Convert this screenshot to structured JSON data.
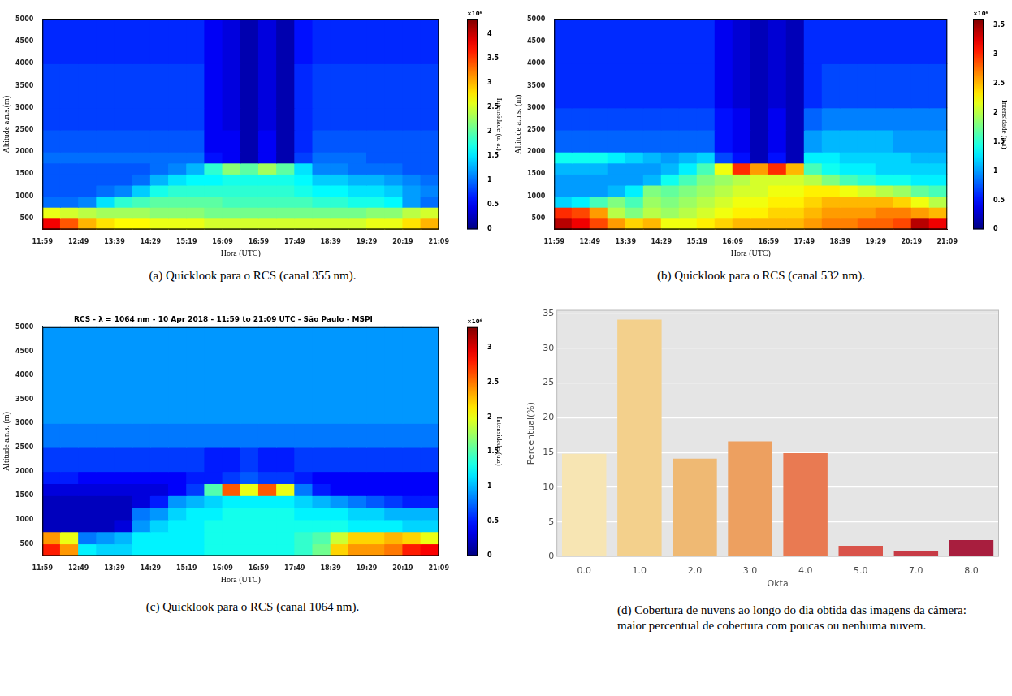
{
  "chart_data": [
    {
      "type": "heatmap",
      "caption": "(a) Quicklook para o RCS (canal 355 nm).",
      "xlabel": "Hora (UTC)",
      "ylabel": "Altitude a.n.s.(m)",
      "grid": false,
      "xlim": [
        719,
        1269
      ],
      "xticks": [
        {
          "value": 719,
          "label": "11:59"
        },
        {
          "value": 769,
          "label": "12:49"
        },
        {
          "value": 819,
          "label": "13:39"
        },
        {
          "value": 869,
          "label": "14:29"
        },
        {
          "value": 919,
          "label": "15:19"
        },
        {
          "value": 969,
          "label": "16:09"
        },
        {
          "value": 1019,
          "label": "16:59"
        },
        {
          "value": 1069,
          "label": "17:49"
        },
        {
          "value": 1119,
          "label": "18:39"
        },
        {
          "value": 1169,
          "label": "19:29"
        },
        {
          "value": 1219,
          "label": "20:19"
        },
        {
          "value": 1269,
          "label": "21:09"
        }
      ],
      "ylim": [
        250,
        5000
      ],
      "yticks": [
        500,
        1000,
        1500,
        2000,
        2500,
        3000,
        3500,
        4000,
        4500,
        5000
      ],
      "x_edges": [
        719,
        744,
        769,
        794,
        819,
        844,
        869,
        894,
        919,
        944,
        969,
        994,
        1019,
        1044,
        1069,
        1094,
        1119,
        1144,
        1169,
        1194,
        1219,
        1244,
        1269
      ],
      "y_edges": [
        250,
        500,
        750,
        1000,
        1250,
        1500,
        1750,
        2000,
        2500,
        3000,
        4000,
        5000
      ],
      "z": [
        [
          3.8,
          3.4,
          3.0,
          2.8,
          2.7,
          2.7,
          2.6,
          2.6,
          2.6,
          2.5,
          2.5,
          2.5,
          2.5,
          2.5,
          2.5,
          2.5,
          2.5,
          2.5,
          2.6,
          2.6,
          2.8,
          3.0
        ],
        [
          2.6,
          2.5,
          2.4,
          2.3,
          2.3,
          2.3,
          2.2,
          2.2,
          2.2,
          2.1,
          2.1,
          2.1,
          2.1,
          2.1,
          2.1,
          2.1,
          2.1,
          2.1,
          2.2,
          2.2,
          2.4,
          2.5
        ],
        [
          1.0,
          1.0,
          1.1,
          1.5,
          1.8,
          1.9,
          2.0,
          2.0,
          2.0,
          2.0,
          1.9,
          1.9,
          1.9,
          1.9,
          1.9,
          1.8,
          1.8,
          1.7,
          1.7,
          1.6,
          1.2,
          1.0
        ],
        [
          0.9,
          0.9,
          0.9,
          1.0,
          1.1,
          1.4,
          1.7,
          1.8,
          1.8,
          1.8,
          1.8,
          1.8,
          1.8,
          1.8,
          1.7,
          1.6,
          1.6,
          1.5,
          1.5,
          1.4,
          1.2,
          1.1
        ],
        [
          0.9,
          0.9,
          0.9,
          0.9,
          0.9,
          1.0,
          1.3,
          1.5,
          1.6,
          1.6,
          1.7,
          1.7,
          1.7,
          1.7,
          1.6,
          1.4,
          1.4,
          1.3,
          1.3,
          1.2,
          1.1,
          1.0
        ],
        [
          0.9,
          0.9,
          0.9,
          0.9,
          0.9,
          0.9,
          1.0,
          1.1,
          1.3,
          1.8,
          2.2,
          2.0,
          2.3,
          2.0,
          1.5,
          1.1,
          1.1,
          1.0,
          1.0,
          1.0,
          0.9,
          0.9
        ],
        [
          1.0,
          1.0,
          1.0,
          1.0,
          1.0,
          1.0,
          1.0,
          1.0,
          1.0,
          0.6,
          0.5,
          0.2,
          0.5,
          0.2,
          0.8,
          1.0,
          1.0,
          1.0,
          0.9,
          0.9,
          0.9,
          0.9
        ],
        [
          0.9,
          0.9,
          0.9,
          0.9,
          0.9,
          0.9,
          0.9,
          0.9,
          0.9,
          0.5,
          0.5,
          0.2,
          0.5,
          0.2,
          0.7,
          0.9,
          0.9,
          0.9,
          0.9,
          0.9,
          0.9,
          0.9
        ],
        [
          0.8,
          0.8,
          0.8,
          0.8,
          0.8,
          0.8,
          0.8,
          0.8,
          0.8,
          0.5,
          0.4,
          0.2,
          0.4,
          0.2,
          0.7,
          0.8,
          0.8,
          0.8,
          0.8,
          0.8,
          0.8,
          0.8
        ],
        [
          0.8,
          0.8,
          0.8,
          0.8,
          0.8,
          0.8,
          0.8,
          0.8,
          0.8,
          0.5,
          0.4,
          0.2,
          0.4,
          0.2,
          0.7,
          0.8,
          0.8,
          0.8,
          0.8,
          0.8,
          0.8,
          0.8
        ],
        [
          0.7,
          0.7,
          0.7,
          0.7,
          0.7,
          0.7,
          0.7,
          0.7,
          0.7,
          0.5,
          0.4,
          0.2,
          0.4,
          0.2,
          0.6,
          0.7,
          0.7,
          0.7,
          0.7,
          0.7,
          0.7,
          0.7
        ]
      ],
      "colorbar": {
        "label": "Intensidade (u. a.)",
        "multiplier": "×10⁶",
        "range": [
          0,
          4.3
        ],
        "ticks": [
          0,
          0.5,
          1,
          1.5,
          2,
          2.5,
          3,
          3.5,
          4
        ]
      }
    },
    {
      "type": "heatmap",
      "caption": "(b) Quicklook para o RCS (canal 532 nm).",
      "xlabel": "Hora (UTC)",
      "ylabel": "Altitude a.n.s. (m)",
      "grid": false,
      "xlim": [
        719,
        1269
      ],
      "xticks": [
        {
          "value": 719,
          "label": "11:59"
        },
        {
          "value": 769,
          "label": "12:49"
        },
        {
          "value": 819,
          "label": "13:39"
        },
        {
          "value": 869,
          "label": "14:29"
        },
        {
          "value": 919,
          "label": "15:19"
        },
        {
          "value": 969,
          "label": "16:09"
        },
        {
          "value": 1019,
          "label": "16:59"
        },
        {
          "value": 1069,
          "label": "17:49"
        },
        {
          "value": 1119,
          "label": "18:39"
        },
        {
          "value": 1169,
          "label": "19:29"
        },
        {
          "value": 1219,
          "label": "20:19"
        },
        {
          "value": 1269,
          "label": "21:09"
        }
      ],
      "ylim": [
        250,
        5000
      ],
      "yticks": [
        500,
        1000,
        1500,
        2000,
        2500,
        3000,
        3500,
        4000,
        4500,
        5000
      ],
      "x_edges": [
        719,
        744,
        769,
        794,
        819,
        844,
        869,
        894,
        919,
        944,
        969,
        994,
        1019,
        1044,
        1069,
        1094,
        1119,
        1144,
        1169,
        1194,
        1219,
        1244,
        1269
      ],
      "y_edges": [
        250,
        500,
        750,
        1000,
        1250,
        1500,
        1750,
        2000,
        2500,
        3000,
        4000,
        5000
      ],
      "z": [
        [
          3.4,
          3.2,
          2.9,
          2.6,
          2.4,
          2.5,
          2.2,
          2.2,
          2.3,
          2.4,
          2.5,
          2.5,
          2.5,
          2.5,
          2.6,
          2.7,
          2.7,
          2.8,
          2.8,
          2.9,
          3.4,
          3.2
        ],
        [
          3.0,
          2.9,
          2.6,
          2.0,
          1.8,
          2.0,
          1.9,
          2.0,
          2.1,
          2.2,
          2.3,
          2.3,
          2.4,
          2.4,
          2.5,
          2.6,
          2.6,
          2.6,
          2.7,
          2.7,
          2.6,
          2.5
        ],
        [
          1.2,
          1.3,
          1.6,
          1.8,
          1.6,
          1.9,
          1.8,
          1.9,
          2.0,
          2.1,
          2.2,
          2.2,
          2.3,
          2.3,
          2.4,
          2.5,
          2.5,
          2.5,
          2.5,
          2.4,
          2.2,
          2.0
        ],
        [
          1.0,
          1.0,
          1.0,
          1.1,
          1.3,
          1.8,
          1.7,
          1.8,
          1.9,
          2.0,
          2.1,
          2.1,
          2.2,
          2.2,
          2.3,
          2.3,
          2.2,
          2.1,
          2.0,
          1.9,
          1.7,
          1.6
        ],
        [
          1.0,
          1.0,
          1.0,
          1.0,
          1.0,
          1.1,
          1.4,
          1.6,
          1.8,
          1.9,
          2.0,
          2.1,
          2.1,
          2.1,
          2.0,
          1.8,
          1.6,
          1.5,
          1.4,
          1.4,
          1.3,
          1.3
        ],
        [
          1.1,
          1.1,
          1.1,
          1.0,
          1.0,
          1.0,
          1.1,
          1.3,
          1.6,
          2.2,
          3.0,
          2.6,
          3.0,
          2.5,
          1.6,
          1.4,
          1.3,
          1.3,
          1.2,
          1.2,
          1.2,
          1.2
        ],
        [
          1.4,
          1.4,
          1.4,
          1.3,
          1.2,
          1.1,
          1.0,
          1.1,
          1.2,
          0.7,
          0.5,
          0.2,
          0.5,
          0.2,
          1.3,
          1.3,
          1.2,
          1.2,
          1.2,
          1.2,
          1.1,
          1.1
        ],
        [
          0.8,
          0.8,
          0.8,
          0.8,
          0.8,
          0.8,
          0.8,
          0.8,
          0.8,
          0.5,
          0.4,
          0.2,
          0.4,
          0.2,
          1.0,
          1.1,
          1.1,
          1.1,
          1.1,
          1.0,
          1.0,
          1.0
        ],
        [
          0.7,
          0.7,
          0.7,
          0.7,
          0.7,
          0.7,
          0.7,
          0.7,
          0.7,
          0.5,
          0.4,
          0.2,
          0.4,
          0.2,
          0.8,
          0.9,
          0.9,
          0.9,
          0.9,
          0.9,
          0.9,
          0.9
        ],
        [
          0.6,
          0.6,
          0.6,
          0.6,
          0.6,
          0.6,
          0.6,
          0.6,
          0.6,
          0.4,
          0.3,
          0.2,
          0.3,
          0.2,
          0.6,
          0.7,
          0.7,
          0.7,
          0.7,
          0.7,
          0.7,
          0.7
        ],
        [
          0.6,
          0.6,
          0.6,
          0.6,
          0.6,
          0.6,
          0.6,
          0.6,
          0.6,
          0.4,
          0.3,
          0.2,
          0.3,
          0.2,
          0.6,
          0.6,
          0.6,
          0.6,
          0.6,
          0.6,
          0.6,
          0.6
        ]
      ],
      "colorbar": {
        "label": "Intensidade (u.a)",
        "multiplier": "×10⁶",
        "range": [
          0,
          3.6
        ],
        "ticks": [
          0,
          0.5,
          1,
          1.5,
          2,
          2.5,
          3,
          3.5
        ]
      }
    },
    {
      "type": "heatmap",
      "title": "RCS - λ = 1064 nm - 10 Apr 2018 - 11:59 to 21:09 UTC - São Paulo - MSPI",
      "caption": "(c) Quicklook para o RCS (canal 1064 nm).",
      "xlabel": "Hora (UTC)",
      "ylabel": "Altitude a.n.s. (m)",
      "grid": false,
      "xlim": [
        719,
        1269
      ],
      "xticks": [
        {
          "value": 719,
          "label": "11:59"
        },
        {
          "value": 769,
          "label": "12:49"
        },
        {
          "value": 819,
          "label": "13:39"
        },
        {
          "value": 869,
          "label": "14:29"
        },
        {
          "value": 919,
          "label": "15:19"
        },
        {
          "value": 969,
          "label": "16:09"
        },
        {
          "value": 1019,
          "label": "16:59"
        },
        {
          "value": 1069,
          "label": "17:49"
        },
        {
          "value": 1119,
          "label": "18:39"
        },
        {
          "value": 1169,
          "label": "19:29"
        },
        {
          "value": 1219,
          "label": "20:19"
        },
        {
          "value": 1269,
          "label": "21:09"
        }
      ],
      "ylim": [
        250,
        5000
      ],
      "yticks": [
        500,
        1000,
        1500,
        2000,
        2500,
        3000,
        3500,
        4000,
        4500,
        5000
      ],
      "x_edges": [
        719,
        744,
        769,
        794,
        819,
        844,
        869,
        894,
        919,
        944,
        969,
        994,
        1019,
        1044,
        1069,
        1094,
        1119,
        1144,
        1169,
        1194,
        1219,
        1244,
        1269
      ],
      "y_edges": [
        250,
        500,
        750,
        1000,
        1250,
        1500,
        1750,
        2000,
        2500,
        3000,
        4000,
        5000
      ],
      "z": [
        [
          2.8,
          2.4,
          1.2,
          1.1,
          1.1,
          1.2,
          1.2,
          1.2,
          1.2,
          1.3,
          1.3,
          1.3,
          1.3,
          1.3,
          1.4,
          1.6,
          2.2,
          2.4,
          2.4,
          2.5,
          2.8,
          2.9
        ],
        [
          2.4,
          2.0,
          0.8,
          0.9,
          1.0,
          1.2,
          1.2,
          1.2,
          1.2,
          1.3,
          1.3,
          1.3,
          1.3,
          1.3,
          1.4,
          1.5,
          1.9,
          2.2,
          2.2,
          2.3,
          2.2,
          2.0
        ],
        [
          0.2,
          0.2,
          0.2,
          0.2,
          0.3,
          0.9,
          1.1,
          1.2,
          1.2,
          1.3,
          1.3,
          1.3,
          1.3,
          1.3,
          1.3,
          1.3,
          1.3,
          1.2,
          1.2,
          1.2,
          1.1,
          1.1
        ],
        [
          0.2,
          0.2,
          0.2,
          0.2,
          0.2,
          0.8,
          0.9,
          1.1,
          1.2,
          1.2,
          1.3,
          1.3,
          1.3,
          1.3,
          1.2,
          1.2,
          1.2,
          1.1,
          1.1,
          1.0,
          1.0,
          1.0
        ],
        [
          0.2,
          0.2,
          0.2,
          0.2,
          0.2,
          0.3,
          0.5,
          0.9,
          1.0,
          1.1,
          1.2,
          1.2,
          1.2,
          1.2,
          1.1,
          1.0,
          0.9,
          0.8,
          0.7,
          0.6,
          0.5,
          0.5
        ],
        [
          0.3,
          0.3,
          0.3,
          0.3,
          0.3,
          0.3,
          0.3,
          0.4,
          0.6,
          1.5,
          2.6,
          2.0,
          2.6,
          2.0,
          0.8,
          0.5,
          0.4,
          0.4,
          0.4,
          0.4,
          0.4,
          0.4
        ],
        [
          0.5,
          0.5,
          0.4,
          0.4,
          0.4,
          0.4,
          0.4,
          0.4,
          0.5,
          0.5,
          0.6,
          0.7,
          0.6,
          0.6,
          0.5,
          0.4,
          0.4,
          0.4,
          0.4,
          0.4,
          0.4,
          0.4
        ],
        [
          0.6,
          0.6,
          0.6,
          0.6,
          0.6,
          0.6,
          0.6,
          0.6,
          0.6,
          0.5,
          0.5,
          0.6,
          0.5,
          0.5,
          0.6,
          0.6,
          0.6,
          0.6,
          0.6,
          0.6,
          0.6,
          0.6
        ],
        [
          0.8,
          0.8,
          0.8,
          0.8,
          0.8,
          0.8,
          0.8,
          0.8,
          0.8,
          0.8,
          0.8,
          0.8,
          0.8,
          0.8,
          0.8,
          0.8,
          0.8,
          0.8,
          0.8,
          0.8,
          0.8,
          0.8
        ],
        [
          0.9,
          0.9,
          0.9,
          0.9,
          0.9,
          0.9,
          0.9,
          0.9,
          0.9,
          0.9,
          0.9,
          0.9,
          0.9,
          0.9,
          0.9,
          0.9,
          0.9,
          0.9,
          0.9,
          0.9,
          0.9,
          0.9
        ],
        [
          0.9,
          0.9,
          0.9,
          0.9,
          0.9,
          0.9,
          0.9,
          0.9,
          0.9,
          0.9,
          0.9,
          0.9,
          0.9,
          0.9,
          0.9,
          0.9,
          0.9,
          0.9,
          0.9,
          0.9,
          0.9,
          0.9
        ]
      ],
      "colorbar": {
        "label": "Intensidade (u.a)",
        "multiplier": "×10⁶",
        "range": [
          0,
          3.3
        ],
        "ticks": [
          0,
          0.5,
          1,
          1.5,
          2,
          2.5,
          3
        ]
      }
    },
    {
      "type": "bar",
      "caption": "(d) Cobertura de nuvens ao longo do dia obtida das imagens da câmera: maior percentual de cobertura com poucas ou nenhuma nuvem.",
      "xlabel": "Okta",
      "ylabel": "Percentual(%)",
      "grid": true,
      "categories": [
        "0.0",
        "1.0",
        "2.0",
        "3.0",
        "4.0",
        "5.0",
        "7.0",
        "8.0"
      ],
      "values": [
        14.8,
        34.1,
        14.1,
        16.6,
        14.9,
        1.6,
        0.8,
        2.4
      ],
      "colors": [
        "#f7e5b3",
        "#f3d08c",
        "#efb973",
        "#eda060",
        "#e97a52",
        "#d9534a",
        "#c73b46",
        "#a81e3e"
      ],
      "ylim": [
        0,
        35.5
      ],
      "yticks": [
        0,
        5,
        10,
        15,
        20,
        25,
        30,
        35
      ]
    }
  ]
}
